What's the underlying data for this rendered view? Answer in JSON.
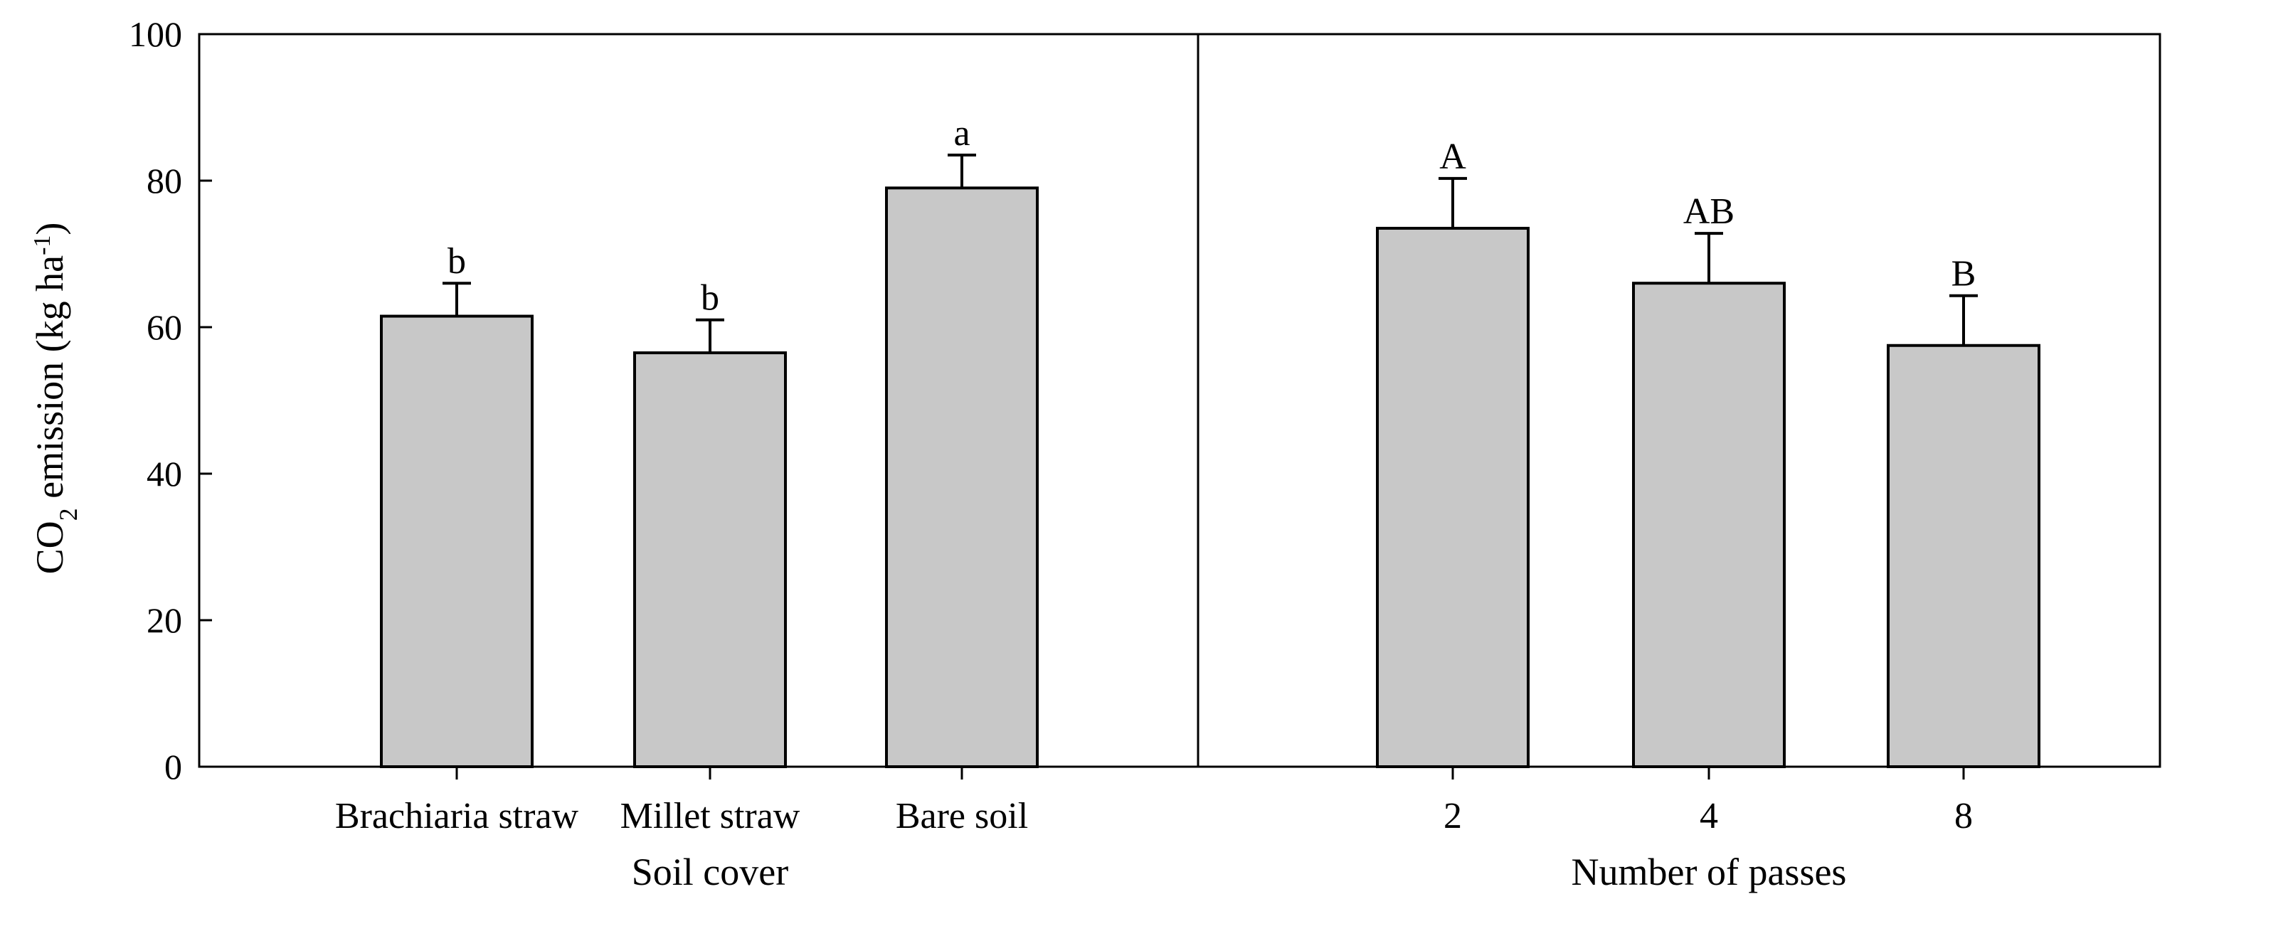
{
  "chart_data": {
    "type": "bar",
    "ylabel": {
      "main": "CO",
      "sub": "2",
      "mid": " emission (kg ha",
      "sup": "-1",
      "end": ")"
    },
    "ylim": [
      0,
      100
    ],
    "yticks": [
      0,
      20,
      40,
      60,
      80,
      100
    ],
    "grid": false,
    "panels": [
      {
        "xlabel": "Soil cover",
        "categories": [
          "Brachiaria straw",
          "Millet straw",
          "Bare soil"
        ],
        "values": [
          61.5,
          56.5,
          79
        ],
        "errors": [
          4.5,
          4.5,
          4.5
        ],
        "letters": [
          "b",
          "b",
          "a"
        ]
      },
      {
        "xlabel": "Number of passes",
        "categories": [
          "2",
          "4",
          "8"
        ],
        "values": [
          73.5,
          66,
          57.5
        ],
        "errors": [
          6.8,
          6.8,
          6.8
        ],
        "letters": [
          "A",
          "AB",
          "B"
        ]
      }
    ]
  }
}
